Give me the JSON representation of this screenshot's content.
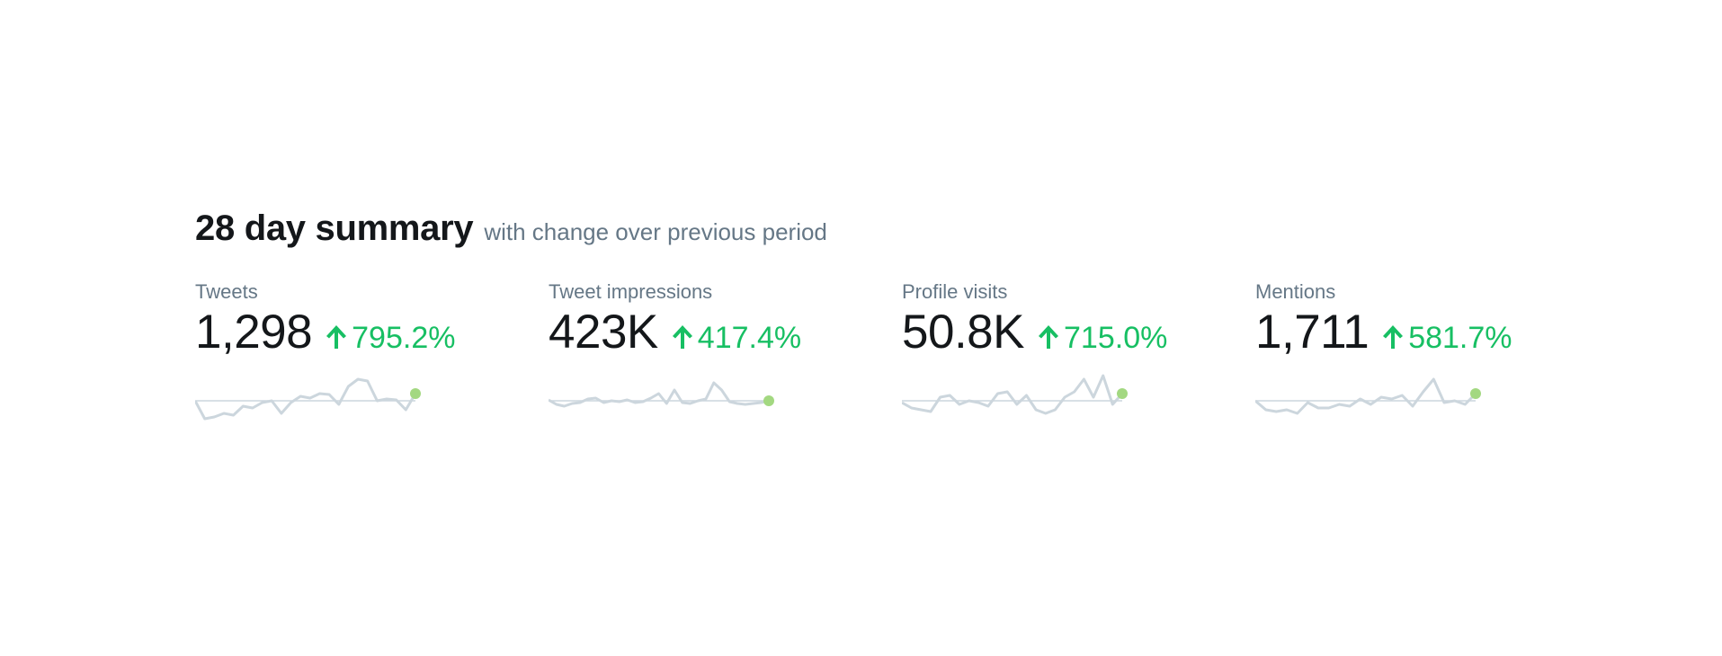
{
  "summary": {
    "title": "28 day summary",
    "subtitle": "with change over previous period"
  },
  "colors": {
    "title": "#14171a",
    "muted": "#657786",
    "positive": "#17bf63",
    "sparkline": "#ccd6dd",
    "baseline": "#ccd6dd",
    "end_dot": "#a3d881"
  },
  "metrics": [
    {
      "label": "Tweets",
      "value": "1,298",
      "change": "795.2%",
      "icon": "arrow-up-icon",
      "trend": [
        0,
        -20,
        -18,
        -14,
        -16,
        -6,
        -8,
        -2,
        0,
        -14,
        -2,
        5,
        3,
        8,
        7,
        -4,
        16,
        24,
        22,
        0,
        2,
        1,
        -10,
        8
      ]
    },
    {
      "label": "Tweet impressions",
      "value": "423K",
      "change": "417.4%",
      "icon": "arrow-up-icon",
      "trend": [
        1,
        -4,
        -6,
        -3,
        -2,
        2,
        3,
        -2,
        0,
        -1,
        1,
        -2,
        -1,
        3,
        8,
        -3,
        12,
        -2,
        -3,
        0,
        2,
        20,
        12,
        -1,
        -3,
        -4,
        -3,
        -2,
        0
      ]
    },
    {
      "label": "Profile visits",
      "value": "50.8K",
      "change": "715.0%",
      "icon": "arrow-up-icon",
      "trend": [
        -2,
        -8,
        -10,
        -12,
        4,
        6,
        -4,
        0,
        -2,
        -6,
        8,
        10,
        -4,
        6,
        -10,
        -14,
        -10,
        4,
        10,
        24,
        4,
        28,
        -4,
        8
      ]
    },
    {
      "label": "Mentions",
      "value": "1,711",
      "change": "581.7%",
      "icon": "arrow-up-icon",
      "trend": [
        0,
        -10,
        -12,
        -10,
        -14,
        -2,
        -8,
        -8,
        -4,
        -6,
        2,
        -4,
        4,
        2,
        6,
        -6,
        10,
        24,
        -2,
        0,
        -4,
        8
      ]
    }
  ]
}
